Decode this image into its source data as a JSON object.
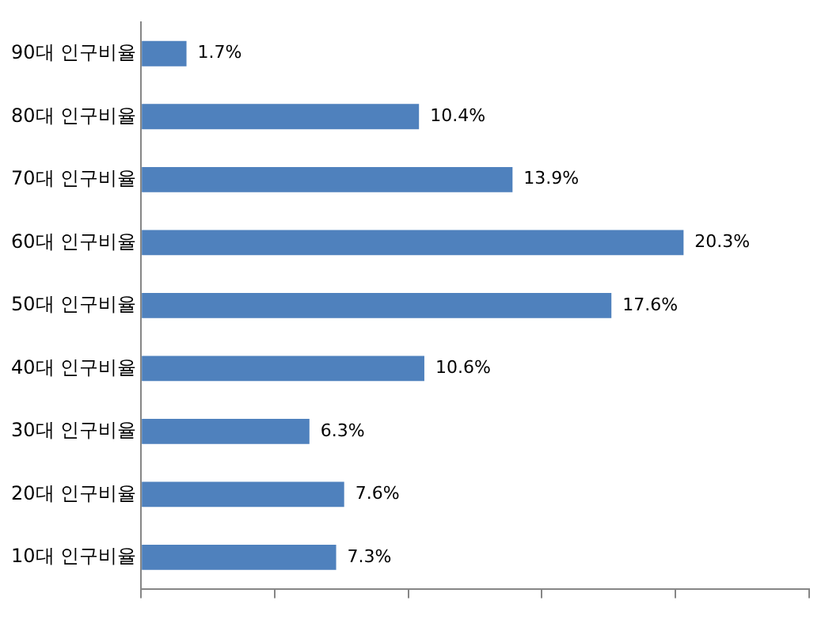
{
  "chart_data": {
    "type": "bar",
    "orientation": "horizontal",
    "categories": [
      "90대 인구비율",
      "80대 인구비율",
      "70대 인구비율",
      "60대 인구비율",
      "50대 인구비율",
      "40대 인구비율",
      "30대 인구비율",
      "20대 인구비율",
      "10대 인구비율"
    ],
    "values": [
      1.7,
      10.4,
      13.9,
      20.3,
      17.6,
      10.6,
      6.3,
      7.6,
      7.3
    ],
    "value_labels": [
      "1.7%",
      "10.4%",
      "13.9%",
      "20.3%",
      "17.6%",
      "10.6%",
      "6.3%",
      "7.6%",
      "7.3%"
    ],
    "color": "#4f81bd",
    "xlim": [
      0,
      25
    ],
    "xticks": [
      {
        "value": 0,
        "label": null
      },
      {
        "value": 5,
        "label": null
      },
      {
        "value": 10,
        "label": null
      },
      {
        "value": 15,
        "label": null
      },
      {
        "value": 20,
        "label": null
      },
      {
        "value": 25,
        "label": null
      }
    ],
    "tick_labels": "y",
    "grid": false,
    "legend": false
  }
}
